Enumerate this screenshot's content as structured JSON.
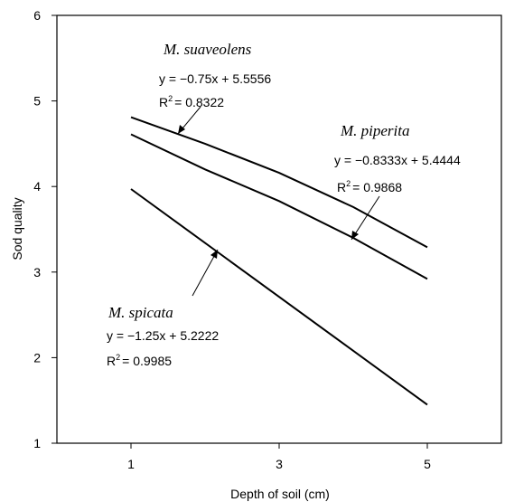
{
  "chart_data": {
    "type": "line",
    "title": "",
    "xlabel": "Depth of soil (cm)",
    "ylabel": "Sod quality",
    "xlim": [
      0,
      6
    ],
    "ylim": [
      1,
      6
    ],
    "xticks": [
      "1",
      "3",
      "5"
    ],
    "yticks": [
      "1",
      "2",
      "3",
      "4",
      "5",
      "6"
    ],
    "grid": false,
    "series": [
      {
        "name": "M. suaveolens",
        "x": [
          1,
          2,
          3,
          4,
          5
        ],
        "y": [
          4.81,
          4.5,
          4.16,
          3.76,
          3.29
        ],
        "equation": "y = −0.75x + 5.5556",
        "r2_label": "R",
        "r2_value": "= 0.8322"
      },
      {
        "name": "M. piperita",
        "x": [
          1,
          2,
          3,
          4,
          5
        ],
        "y": [
          4.61,
          4.2,
          3.83,
          3.4,
          2.92
        ],
        "equation": "y = −0.8333x + 5.4444",
        "r2_label": "R",
        "r2_value": "= 0.9868"
      },
      {
        "name": "M. spicata",
        "x": [
          1,
          5
        ],
        "y": [
          3.97,
          1.45
        ],
        "equation": "y = −1.25x + 5.2222",
        "r2_label": "R",
        "r2_value": "= 0.9985"
      }
    ]
  }
}
